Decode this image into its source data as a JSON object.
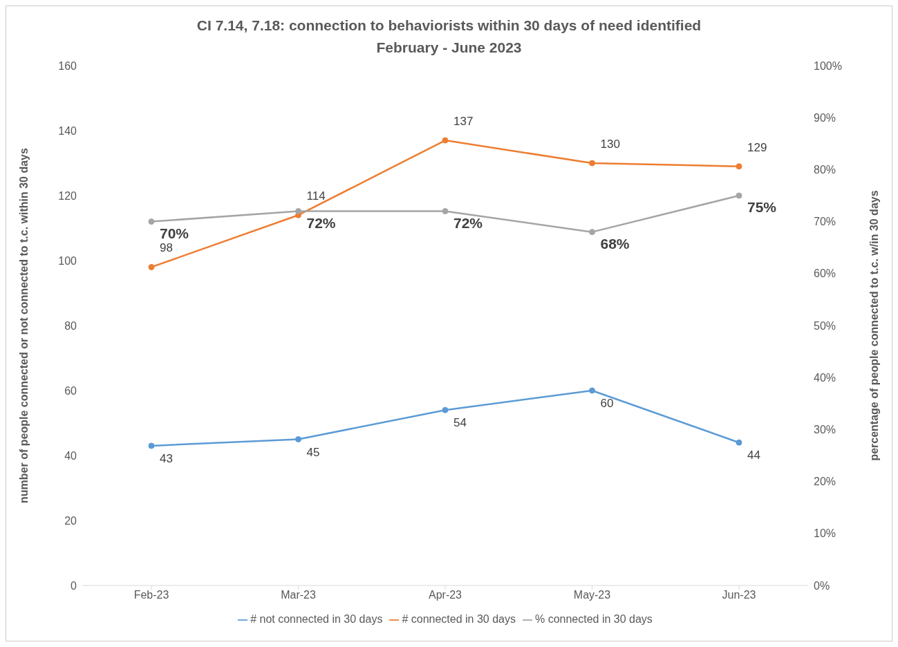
{
  "chart_data": {
    "type": "line",
    "title": "CI 7.14, 7.18: connection to behaviorists within 30 days of need identified",
    "subtitle": "February - June 2023",
    "categories": [
      "Feb-23",
      "Mar-23",
      "Apr-23",
      "May-23",
      "Jun-23"
    ],
    "series": [
      {
        "name": "# not connected in 30 days",
        "color": "#5b9bd5",
        "values": [
          43,
          45,
          54,
          60,
          44
        ],
        "value_labels": [
          "43",
          "45",
          "54",
          "60",
          "44"
        ]
      },
      {
        "name": "# connected in 30 days",
        "color": "#ed7d31",
        "values": [
          98,
          114,
          137,
          130,
          129
        ],
        "value_labels": [
          "98",
          "114",
          "137",
          "130",
          "129"
        ]
      },
      {
        "name": "% connected in 30 days",
        "color": "#a5a5a5",
        "axis": "y2",
        "values": [
          70,
          72,
          72,
          68,
          75
        ],
        "value_labels": [
          "70%",
          "72%",
          "72%",
          "68%",
          "75%"
        ]
      }
    ],
    "ylabel": "number of people connected or not connected to t.c. within 30 days",
    "y2label": "percentage of people connected to t.c. w/in 30 days",
    "ylim": [
      0,
      160
    ],
    "yticks": [
      0,
      20,
      40,
      60,
      80,
      100,
      120,
      140,
      160
    ],
    "y2lim": [
      0,
      100
    ],
    "y2ticks": [
      {
        "value": 0,
        "label": "0%"
      },
      {
        "value": 10,
        "label": "10%"
      },
      {
        "value": 20,
        "label": "20%"
      },
      {
        "value": 30,
        "label": "30%"
      },
      {
        "value": 40,
        "label": "40%"
      },
      {
        "value": 50,
        "label": "50%"
      },
      {
        "value": 60,
        "label": "60%"
      },
      {
        "value": 70,
        "label": "70%"
      },
      {
        "value": 80,
        "label": "80%"
      },
      {
        "value": 90,
        "label": "90%"
      },
      {
        "value": 100,
        "label": "100%"
      }
    ],
    "grid": false,
    "legend": "bottom",
    "marker": "circle",
    "line_style": "solid"
  }
}
